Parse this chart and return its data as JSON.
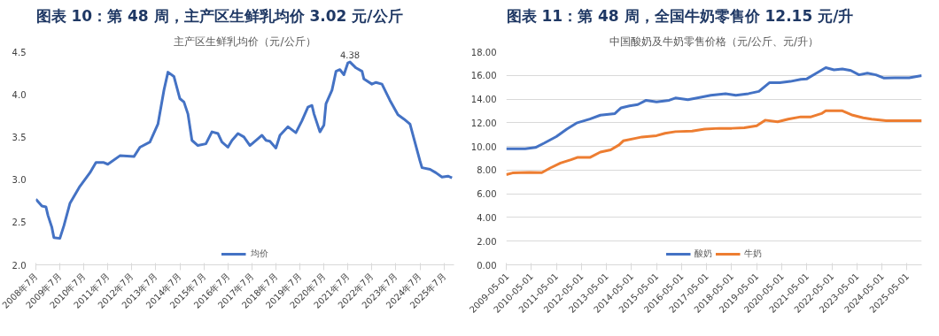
{
  "chart_data": [
    {
      "type": "line",
      "title": "图表 10：第 48 周，主产区生鲜乳均价 3.02 元/公斤",
      "subtitle": "主产区生鲜乳均价（元/公斤）",
      "series": [
        {
          "name": "均价",
          "color": "#4472c4",
          "x": [
            "2008-07",
            "2008-10",
            "2008-12",
            "2009-01",
            "2009-03",
            "2009-04",
            "2009-07",
            "2009-09",
            "2009-12",
            "2010-05",
            "2010-10",
            "2011-01",
            "2011-05",
            "2011-07",
            "2012-01",
            "2012-08",
            "2012-11",
            "2013-04",
            "2013-08",
            "2013-11",
            "2014-01",
            "2014-04",
            "2014-07",
            "2014-09",
            "2014-11",
            "2015-01",
            "2015-04",
            "2015-08",
            "2015-11",
            "2016-02",
            "2016-04",
            "2016-07",
            "2016-09",
            "2016-12",
            "2017-03",
            "2017-06",
            "2017-10",
            "2017-12",
            "2018-02",
            "2018-04",
            "2018-07",
            "2018-09",
            "2019-01",
            "2019-05",
            "2019-08",
            "2019-11",
            "2020-01",
            "2020-02",
            "2020-05",
            "2020-07",
            "2020-08",
            "2020-11",
            "2021-01",
            "2021-03",
            "2021-05",
            "2021-07",
            "2021-08",
            "2021-11",
            "2022-02",
            "2022-03",
            "2022-07",
            "2022-09",
            "2022-12",
            "2023-04",
            "2023-08",
            "2023-11",
            "2024-02",
            "2024-04",
            "2024-07",
            "2024-08",
            "2024-12",
            "2025-03",
            "2025-06",
            "2025-09",
            "2025-11"
          ],
          "values": [
            2.77,
            2.69,
            2.68,
            2.58,
            2.44,
            2.32,
            2.31,
            2.46,
            2.72,
            2.92,
            3.08,
            3.2,
            3.2,
            3.18,
            3.28,
            3.27,
            3.38,
            3.44,
            3.65,
            4.05,
            4.26,
            4.21,
            3.95,
            3.91,
            3.77,
            3.46,
            3.4,
            3.42,
            3.56,
            3.54,
            3.44,
            3.38,
            3.46,
            3.54,
            3.5,
            3.4,
            3.48,
            3.52,
            3.46,
            3.45,
            3.37,
            3.52,
            3.62,
            3.55,
            3.69,
            3.85,
            3.87,
            3.77,
            3.56,
            3.64,
            3.89,
            4.05,
            4.27,
            4.29,
            4.23,
            4.37,
            4.38,
            4.31,
            4.27,
            4.18,
            4.12,
            4.14,
            4.12,
            3.93,
            3.76,
            3.71,
            3.65,
            3.48,
            3.22,
            3.14,
            3.12,
            3.08,
            3.03,
            3.04,
            3.02
          ]
        }
      ],
      "annotations": [
        {
          "text": "4.38",
          "x": "2021-08",
          "y": 4.38
        }
      ],
      "xlim": [
        "2008-07",
        "2025-12"
      ],
      "xticks": [
        {
          "value": "2008-07",
          "label": "2008年7月"
        },
        {
          "value": "2009-07",
          "label": "2009年7月"
        },
        {
          "value": "2010-07",
          "label": "2010年7月"
        },
        {
          "value": "2011-07",
          "label": "2011年7月"
        },
        {
          "value": "2012-07",
          "label": "2012年7月"
        },
        {
          "value": "2013-07",
          "label": "2013年7月"
        },
        {
          "value": "2014-07",
          "label": "2014年7月"
        },
        {
          "value": "2015-07",
          "label": "2015年7月"
        },
        {
          "value": "2016-07",
          "label": "2016年7月"
        },
        {
          "value": "2017-07",
          "label": "2017年7月"
        },
        {
          "value": "2018-07",
          "label": "2018年7月"
        },
        {
          "value": "2019-07",
          "label": "2019年7月"
        },
        {
          "value": "2020-07",
          "label": "2020年7月"
        },
        {
          "value": "2021-07",
          "label": "2021年7月"
        },
        {
          "value": "2022-07",
          "label": "2022年7月"
        },
        {
          "value": "2023-07",
          "label": "2023年7月"
        },
        {
          "value": "2024-07",
          "label": "2024年7月"
        },
        {
          "value": "2025-07",
          "label": "2025年7月"
        }
      ],
      "ylim": [
        2,
        4.5
      ],
      "yticks": [
        {
          "value": 2,
          "label": "2.0"
        },
        {
          "value": 2.5,
          "label": "2.5"
        },
        {
          "value": 3,
          "label": "3.0"
        },
        {
          "value": 3.5,
          "label": "3.5"
        },
        {
          "value": 4,
          "label": "4.0"
        },
        {
          "value": 4.5,
          "label": "4.5"
        }
      ],
      "grid": false,
      "legend": "bottom"
    },
    {
      "type": "line",
      "title": "图表 11：第 48 周，全国牛奶零售价 12.15 元/升",
      "subtitle": "中国酸奶及牛奶零售价格（元/公斤、元/升）",
      "series": [
        {
          "name": "酸奶",
          "color": "#4472c4",
          "x": [
            "2009-05",
            "2010-02",
            "2010-07",
            "2010-11",
            "2011-05",
            "2011-10",
            "2012-03",
            "2012-09",
            "2013-02",
            "2013-09",
            "2013-12",
            "2014-04",
            "2014-08",
            "2014-12",
            "2015-05",
            "2015-11",
            "2016-02",
            "2016-08",
            "2017-01",
            "2017-07",
            "2018-02",
            "2018-07",
            "2019-01",
            "2019-06",
            "2019-11",
            "2020-04",
            "2020-09",
            "2021-02",
            "2021-05",
            "2021-09",
            "2022-02",
            "2022-06",
            "2022-10",
            "2023-02",
            "2023-06",
            "2023-10",
            "2024-02",
            "2024-06",
            "2024-11",
            "2025-06",
            "2025-12"
          ],
          "values": [
            9.8,
            9.8,
            9.91,
            10.27,
            10.83,
            11.47,
            12.0,
            12.31,
            12.64,
            12.78,
            13.26,
            13.42,
            13.54,
            13.9,
            13.76,
            13.9,
            14.09,
            13.95,
            14.12,
            14.32,
            14.46,
            14.32,
            14.46,
            14.65,
            15.38,
            15.38,
            15.49,
            15.66,
            15.71,
            16.13,
            16.66,
            16.47,
            16.55,
            16.41,
            16.05,
            16.19,
            16.05,
            15.77,
            15.8,
            15.8,
            15.99
          ]
        },
        {
          "name": "牛奶",
          "color": "#ed7d31",
          "x": [
            "2009-05",
            "2009-08",
            "2010-04",
            "2010-10",
            "2011-02",
            "2011-07",
            "2011-12",
            "2012-03",
            "2012-09",
            "2013-02",
            "2013-07",
            "2013-11",
            "2014-01",
            "2014-07",
            "2014-10",
            "2015-05",
            "2015-09",
            "2016-02",
            "2016-10",
            "2017-04",
            "2017-11",
            "2018-05",
            "2018-11",
            "2019-05",
            "2019-09",
            "2020-03",
            "2020-08",
            "2021-02",
            "2021-07",
            "2021-12",
            "2022-02",
            "2022-10",
            "2023-03",
            "2023-08",
            "2023-12",
            "2024-07",
            "2025-01",
            "2025-12"
          ],
          "values": [
            7.62,
            7.76,
            7.81,
            7.79,
            8.18,
            8.6,
            8.88,
            9.07,
            9.07,
            9.52,
            9.71,
            10.13,
            10.47,
            10.69,
            10.8,
            10.91,
            11.11,
            11.25,
            11.3,
            11.47,
            11.53,
            11.53,
            11.58,
            11.75,
            12.22,
            12.08,
            12.31,
            12.5,
            12.5,
            12.78,
            13.01,
            13.01,
            12.64,
            12.42,
            12.31,
            12.17,
            12.17,
            12.17
          ]
        }
      ],
      "xlim": [
        "2009-05",
        "2025-12"
      ],
      "xticks": [
        {
          "value": "2009-05-01",
          "label": "2009-05-01"
        },
        {
          "value": "2010-05-01",
          "label": "2010-05-01"
        },
        {
          "value": "2011-05-01",
          "label": "2011-05-01"
        },
        {
          "value": "2012-05-01",
          "label": "2012-05-01"
        },
        {
          "value": "2013-05-01",
          "label": "2013-05-01"
        },
        {
          "value": "2014-05-01",
          "label": "2014-05-01"
        },
        {
          "value": "2015-05-01",
          "label": "2015-05-01"
        },
        {
          "value": "2016-05-01",
          "label": "2016-05-01"
        },
        {
          "value": "2017-05-01",
          "label": "2017-05-01"
        },
        {
          "value": "2018-05-01",
          "label": "2018-05-01"
        },
        {
          "value": "2019-05-01",
          "label": "2019-05-01"
        },
        {
          "value": "2020-05-01",
          "label": "2020-05-01"
        },
        {
          "value": "2021-05-01",
          "label": "2021-05-01"
        },
        {
          "value": "2022-05-01",
          "label": "2022-05-01"
        },
        {
          "value": "2023-05-01",
          "label": "2023-05-01"
        },
        {
          "value": "2024-05-01",
          "label": "2024-05-01"
        },
        {
          "value": "2025-05-01",
          "label": "2025-05-01"
        }
      ],
      "ylim": [
        0,
        18
      ],
      "yticks": [
        {
          "value": 0,
          "label": "0.00"
        },
        {
          "value": 2,
          "label": "2.00"
        },
        {
          "value": 4,
          "label": "4.00"
        },
        {
          "value": 6,
          "label": "6.00"
        },
        {
          "value": 8,
          "label": "8.00"
        },
        {
          "value": 10,
          "label": "10.00"
        },
        {
          "value": 12,
          "label": "12.00"
        },
        {
          "value": 14,
          "label": "14.00"
        },
        {
          "value": 16,
          "label": "16.00"
        },
        {
          "value": 18,
          "label": "18.00"
        }
      ],
      "grid": "y",
      "legend": "bottom"
    }
  ]
}
